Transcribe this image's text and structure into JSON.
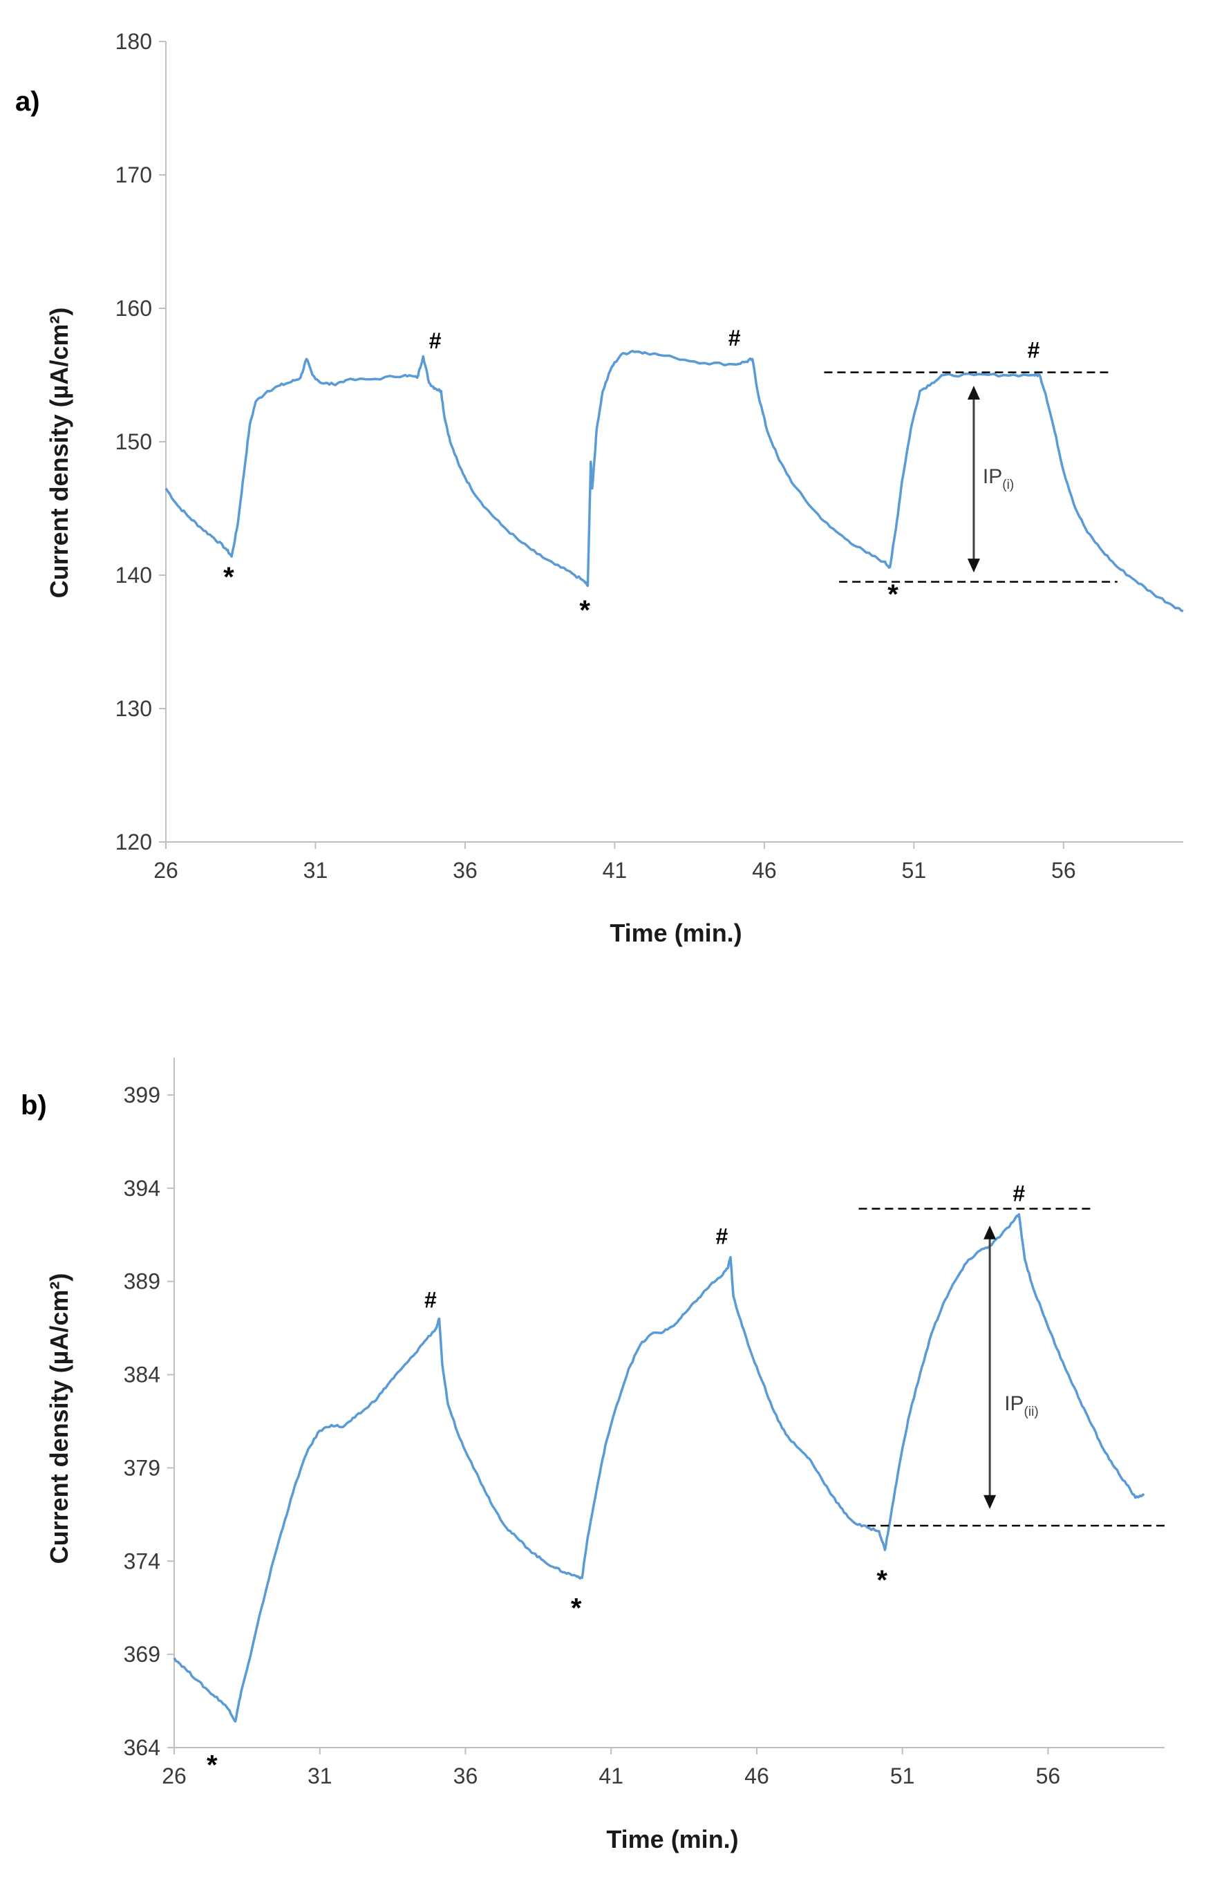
{
  "chart_data": [
    {
      "type": "line",
      "panel_label": "a)",
      "title": "",
      "xlabel": "Time (min.)",
      "ylabel": "Current density (µA/cm²)",
      "xlim": [
        26,
        60
      ],
      "ylim": [
        120,
        180
      ],
      "x_ticks": [
        26,
        31,
        36,
        41,
        46,
        51,
        56
      ],
      "y_ticks": [
        120,
        130,
        140,
        150,
        160,
        170,
        180
      ],
      "grid": false,
      "series": [
        {
          "name": "current density",
          "color": "#5b9bd5",
          "points": [
            [
              26.0,
              146.5
            ],
            [
              26.4,
              145.2
            ],
            [
              26.8,
              144.3
            ],
            [
              27.2,
              143.5
            ],
            [
              27.6,
              142.8
            ],
            [
              28.0,
              142.0
            ],
            [
              28.2,
              141.4
            ],
            [
              28.4,
              143.8
            ],
            [
              28.6,
              147.5
            ],
            [
              28.8,
              151.2
            ],
            [
              29.0,
              153.0
            ],
            [
              29.4,
              153.8
            ],
            [
              29.8,
              154.2
            ],
            [
              30.2,
              154.5
            ],
            [
              30.5,
              154.8
            ],
            [
              30.7,
              156.2
            ],
            [
              30.9,
              155.0
            ],
            [
              31.2,
              154.4
            ],
            [
              31.6,
              154.3
            ],
            [
              32.0,
              154.6
            ],
            [
              33.0,
              154.7
            ],
            [
              34.0,
              155.0
            ],
            [
              34.4,
              154.8
            ],
            [
              34.6,
              156.4
            ],
            [
              34.8,
              154.4
            ],
            [
              35.0,
              154.0
            ],
            [
              35.2,
              153.8
            ],
            [
              35.3,
              152.0
            ],
            [
              35.5,
              150.0
            ],
            [
              35.8,
              148.2
            ],
            [
              36.2,
              146.5
            ],
            [
              36.7,
              145.0
            ],
            [
              37.2,
              143.8
            ],
            [
              37.8,
              142.6
            ],
            [
              38.4,
              141.6
            ],
            [
              39.0,
              140.8
            ],
            [
              39.6,
              140.1
            ],
            [
              40.0,
              139.5
            ],
            [
              40.1,
              139.2
            ],
            [
              40.2,
              148.5
            ],
            [
              40.25,
              146.5
            ],
            [
              40.4,
              151.0
            ],
            [
              40.6,
              153.8
            ],
            [
              40.9,
              155.6
            ],
            [
              41.2,
              156.5
            ],
            [
              41.6,
              156.8
            ],
            [
              42.0,
              156.7
            ],
            [
              43.0,
              156.3
            ],
            [
              44.0,
              155.9
            ],
            [
              45.0,
              155.8
            ],
            [
              45.4,
              156.0
            ],
            [
              45.6,
              156.2
            ],
            [
              45.8,
              153.5
            ],
            [
              46.1,
              150.8
            ],
            [
              46.5,
              148.6
            ],
            [
              47.0,
              146.7
            ],
            [
              47.6,
              145.0
            ],
            [
              48.2,
              143.6
            ],
            [
              48.8,
              142.6
            ],
            [
              49.4,
              141.7
            ],
            [
              50.0,
              141.0
            ],
            [
              50.2,
              140.6
            ],
            [
              50.4,
              143.5
            ],
            [
              50.6,
              147.0
            ],
            [
              50.9,
              151.0
            ],
            [
              51.2,
              153.8
            ],
            [
              51.6,
              154.4
            ],
            [
              52.0,
              155.0
            ],
            [
              53.0,
              155.0
            ],
            [
              54.0,
              155.0
            ],
            [
              55.0,
              155.0
            ],
            [
              55.2,
              155.0
            ],
            [
              55.4,
              153.6
            ],
            [
              55.7,
              150.8
            ],
            [
              56.0,
              147.8
            ],
            [
              56.4,
              145.0
            ],
            [
              56.8,
              143.2
            ],
            [
              57.3,
              141.8
            ],
            [
              57.8,
              140.6
            ],
            [
              58.4,
              139.6
            ],
            [
              59.0,
              138.6
            ],
            [
              59.6,
              137.8
            ],
            [
              60.0,
              137.3
            ]
          ]
        }
      ],
      "annotations": {
        "hash_marks": [
          {
            "x": 35.0,
            "y": 157.0
          },
          {
            "x": 45.0,
            "y": 157.2
          },
          {
            "x": 55.0,
            "y": 156.3
          }
        ],
        "star_marks": [
          {
            "x": 28.1,
            "y": 139.9
          },
          {
            "x": 40.0,
            "y": 137.4
          },
          {
            "x": 50.3,
            "y": 138.6
          }
        ],
        "dashed_lines": [
          {
            "y": 155.2,
            "x_start": 48.0,
            "x_end": 57.6
          },
          {
            "y": 139.5,
            "x_start": 48.5,
            "x_end": 57.8
          }
        ],
        "arrow": {
          "x": 53.0,
          "y_top": 154.2,
          "y_bottom": 140.2
        },
        "ip_label": {
          "text": "IP",
          "sub": "(i)",
          "x": 53.3,
          "y": 146.9
        }
      }
    },
    {
      "type": "line",
      "panel_label": "b)",
      "title": "",
      "xlabel": "Time (min.)",
      "ylabel": "Current density (µA/cm²)",
      "xlim": [
        26,
        60
      ],
      "ylim": [
        364,
        401
      ],
      "x_ticks": [
        26,
        31,
        36,
        41,
        46,
        51,
        56
      ],
      "y_ticks": [
        364,
        369,
        374,
        379,
        384,
        389,
        394,
        399
      ],
      "grid": false,
      "series": [
        {
          "name": "current density",
          "color": "#5b9bd5",
          "points": [
            [
              26.0,
              368.8
            ],
            [
              26.4,
              368.2
            ],
            [
              26.8,
              367.6
            ],
            [
              27.2,
              367.0
            ],
            [
              27.6,
              366.5
            ],
            [
              27.9,
              366.0
            ],
            [
              28.1,
              365.4
            ],
            [
              28.3,
              367.0
            ],
            [
              28.6,
              368.8
            ],
            [
              29.0,
              371.5
            ],
            [
              29.4,
              374.0
            ],
            [
              29.8,
              376.2
            ],
            [
              30.2,
              378.3
            ],
            [
              30.6,
              380.0
            ],
            [
              31.0,
              381.0
            ],
            [
              31.4,
              381.3
            ],
            [
              31.8,
              381.2
            ],
            [
              32.2,
              381.7
            ],
            [
              32.6,
              382.2
            ],
            [
              33.0,
              382.8
            ],
            [
              33.4,
              383.6
            ],
            [
              33.8,
              384.3
            ],
            [
              34.2,
              385.0
            ],
            [
              34.6,
              385.8
            ],
            [
              35.0,
              386.5
            ],
            [
              35.1,
              387.0
            ],
            [
              35.2,
              384.6
            ],
            [
              35.4,
              382.4
            ],
            [
              35.8,
              380.6
            ],
            [
              36.2,
              379.3
            ],
            [
              36.6,
              378.0
            ],
            [
              37.0,
              376.8
            ],
            [
              37.4,
              375.8
            ],
            [
              37.8,
              375.2
            ],
            [
              38.2,
              374.6
            ],
            [
              38.6,
              374.1
            ],
            [
              39.0,
              373.7
            ],
            [
              39.4,
              373.4
            ],
            [
              39.8,
              373.2
            ],
            [
              40.0,
              373.1
            ],
            [
              40.2,
              375.3
            ],
            [
              40.5,
              377.8
            ],
            [
              40.8,
              380.2
            ],
            [
              41.2,
              382.4
            ],
            [
              41.6,
              384.3
            ],
            [
              42.0,
              385.6
            ],
            [
              42.4,
              386.2
            ],
            [
              42.8,
              386.3
            ],
            [
              43.2,
              386.7
            ],
            [
              43.6,
              387.4
            ],
            [
              44.0,
              388.1
            ],
            [
              44.4,
              388.8
            ],
            [
              44.8,
              389.3
            ],
            [
              45.0,
              389.7
            ],
            [
              45.1,
              390.3
            ],
            [
              45.2,
              388.2
            ],
            [
              45.5,
              386.6
            ],
            [
              45.8,
              385.2
            ],
            [
              46.2,
              383.6
            ],
            [
              46.6,
              382.0
            ],
            [
              47.0,
              380.8
            ],
            [
              47.4,
              380.1
            ],
            [
              47.8,
              379.5
            ],
            [
              48.2,
              378.5
            ],
            [
              48.6,
              377.5
            ],
            [
              49.0,
              376.6
            ],
            [
              49.4,
              376.0
            ],
            [
              49.8,
              375.8
            ],
            [
              50.2,
              375.6
            ],
            [
              50.4,
              374.6
            ],
            [
              50.6,
              376.4
            ],
            [
              50.9,
              379.2
            ],
            [
              51.2,
              381.6
            ],
            [
              51.6,
              384.0
            ],
            [
              52.0,
              386.2
            ],
            [
              52.4,
              387.8
            ],
            [
              52.8,
              389.0
            ],
            [
              53.2,
              390.0
            ],
            [
              53.6,
              390.6
            ],
            [
              54.0,
              390.9
            ],
            [
              54.4,
              391.5
            ],
            [
              54.8,
              392.2
            ],
            [
              55.0,
              392.6
            ],
            [
              55.2,
              390.2
            ],
            [
              55.5,
              388.6
            ],
            [
              55.9,
              387.0
            ],
            [
              56.3,
              385.4
            ],
            [
              56.7,
              384.0
            ],
            [
              57.1,
              382.6
            ],
            [
              57.5,
              381.3
            ],
            [
              57.9,
              380.0
            ],
            [
              58.3,
              379.0
            ],
            [
              58.7,
              378.1
            ],
            [
              59.0,
              377.4
            ],
            [
              59.3,
              377.6
            ]
          ]
        }
      ],
      "annotations": {
        "hash_marks": [
          {
            "x": 34.8,
            "y": 387.6
          },
          {
            "x": 44.8,
            "y": 391.0
          },
          {
            "x": 55.0,
            "y": 393.3
          }
        ],
        "star_marks": [
          {
            "x": 27.3,
            "y": 363.1
          },
          {
            "x": 39.8,
            "y": 371.5
          },
          {
            "x": 50.3,
            "y": 373.0
          }
        ],
        "dashed_lines": [
          {
            "y": 392.9,
            "x_start": 49.5,
            "x_end": 57.6
          },
          {
            "y": 375.9,
            "x_start": 49.8,
            "x_end": 60.0
          }
        ],
        "arrow": {
          "x": 54.0,
          "y_top": 392.0,
          "y_bottom": 376.8
        },
        "ip_label": {
          "text": "IP",
          "sub": "(ii)",
          "x": 54.5,
          "y": 382.1
        }
      }
    }
  ]
}
